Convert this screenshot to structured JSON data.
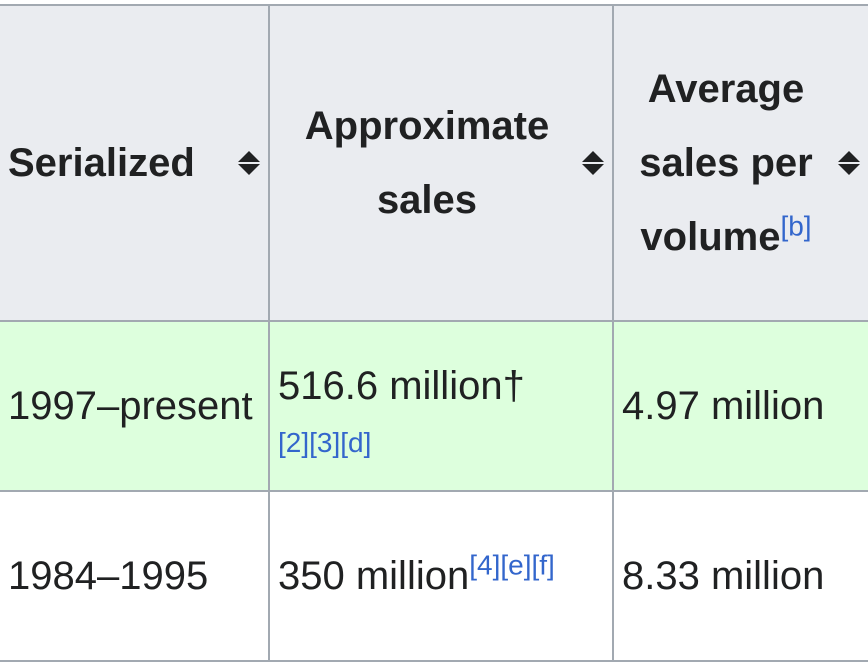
{
  "table": {
    "headers": [
      {
        "label": "Serialized",
        "note": ""
      },
      {
        "label": "Approximate sales",
        "note": ""
      },
      {
        "label": "Average sales per volume",
        "note": "[b]"
      }
    ],
    "rows": [
      {
        "serialized": "1997–present",
        "sales": "516.6 million†",
        "sales_refs": "[2][3][d]",
        "average": "4.97 million",
        "highlighted": true
      },
      {
        "serialized": "1984–1995",
        "sales": "350 million",
        "sales_refs": "[4][e][f]",
        "average": "8.33 million",
        "highlighted": false
      }
    ],
    "colors": {
      "header_bg": "#eaecf0",
      "highlight_bg": "#ddffdd",
      "border": "#a2a9b1",
      "link": "#3366cc"
    }
  }
}
